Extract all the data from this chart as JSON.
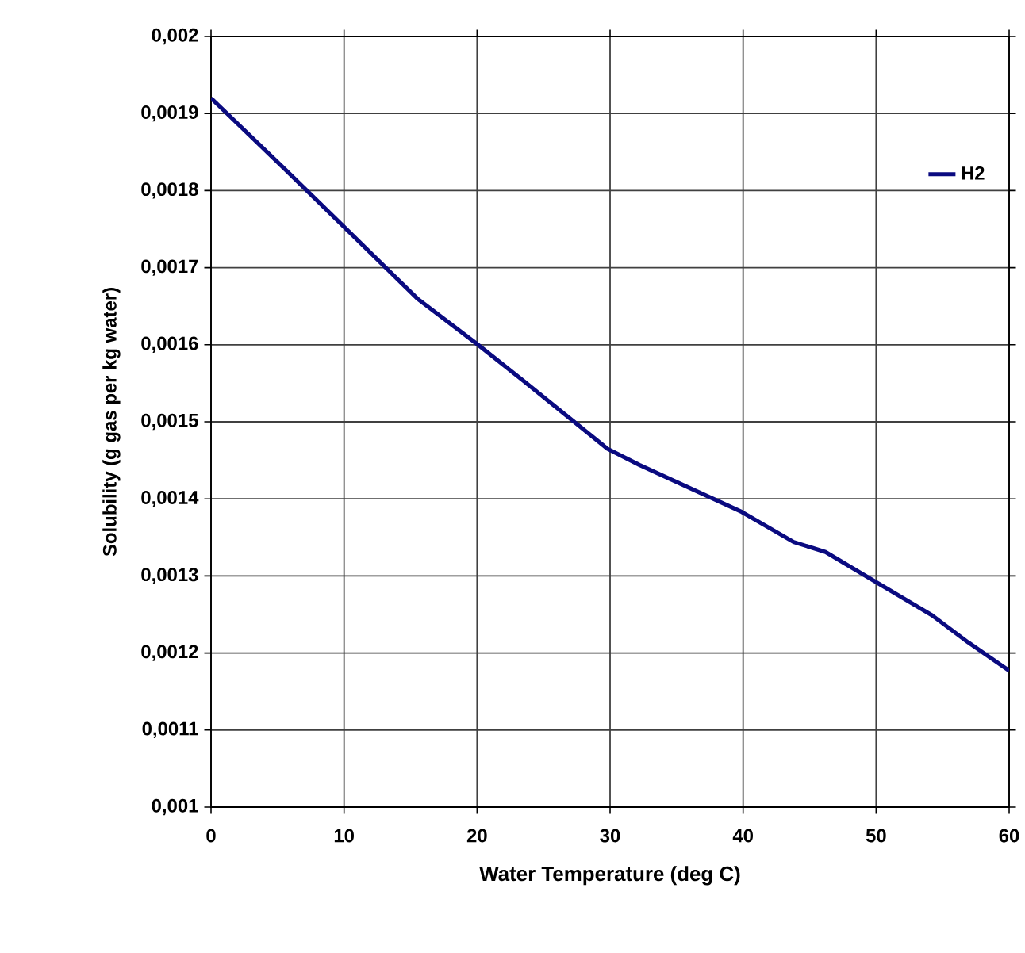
{
  "chart_data": {
    "type": "line",
    "xlabel": "Water Temperature (deg C)",
    "ylabel": "Solubility (g gas per kg water)",
    "x": [
      0,
      5.6,
      10,
      15.5,
      20,
      23.5,
      29.8,
      32.2,
      39.9,
      43.8,
      46.2,
      49.6,
      54.2,
      56.9,
      60
    ],
    "series": [
      {
        "name": "H2",
        "color": "#0a0a80",
        "values": [
          0.00192,
          0.001827,
          0.001753,
          0.00166,
          0.001601,
          0.001553,
          0.001465,
          0.001444,
          0.001383,
          0.001344,
          0.001331,
          0.001296,
          0.001249,
          0.001214,
          0.001177
        ]
      }
    ],
    "xlim": [
      0,
      60
    ],
    "ylim": [
      0.001,
      0.002
    ],
    "xticks": [
      0,
      10,
      20,
      30,
      40,
      50,
      60
    ],
    "yticks": [
      {
        "value": 0.001,
        "label": "0,001"
      },
      {
        "value": 0.0011,
        "label": "0,0011"
      },
      {
        "value": 0.0012,
        "label": "0,0012"
      },
      {
        "value": 0.0013,
        "label": "0,0013"
      },
      {
        "value": 0.0014,
        "label": "0,0014"
      },
      {
        "value": 0.0015,
        "label": "0,0015"
      },
      {
        "value": 0.0016,
        "label": "0,0016"
      },
      {
        "value": 0.0017,
        "label": "0,0017"
      },
      {
        "value": 0.0018,
        "label": "0,0018"
      },
      {
        "value": 0.0019,
        "label": "0,0019"
      },
      {
        "value": 0.002,
        "label": "0,002"
      }
    ],
    "grid": true,
    "legend": "top right",
    "marker": "none",
    "line_style": "solid"
  }
}
